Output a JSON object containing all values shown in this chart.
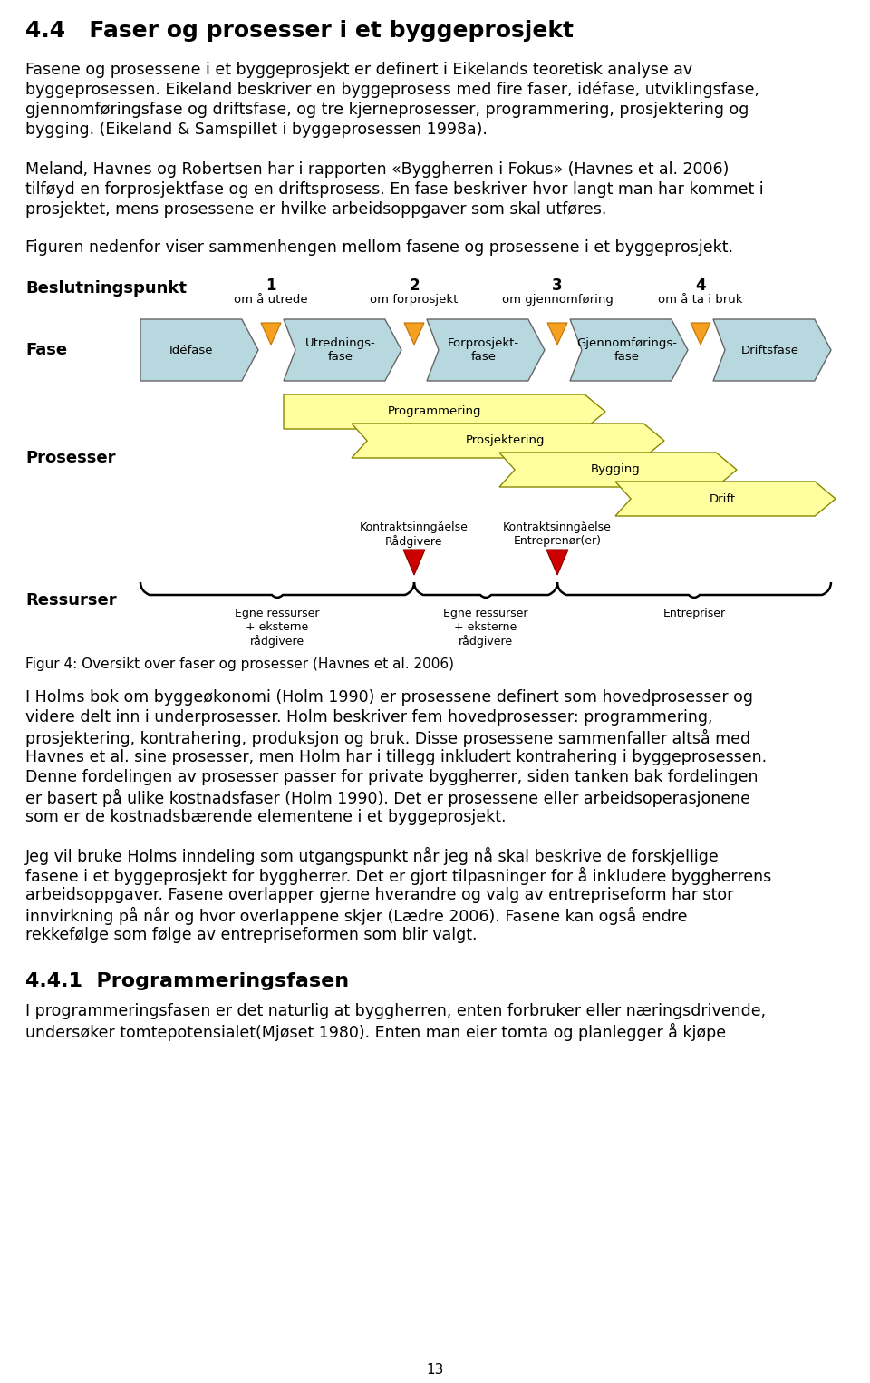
{
  "title_number": "4.4",
  "title_text": "Faser og prosesser i et byggeprosjekt",
  "para1_line1": "Fasene og prosessene i et byggeprosjekt er definert i Eikelands teoretisk analyse av",
  "para1_line2": "byggeprosessen. Eikeland beskriver en byggeprosess med fire faser, idéfase, utviklingsfase,",
  "para1_line3": "gjennomføringsfase og driftsfase, og tre kjerneprosesser, programmering, prosjektering og",
  "para1_line4": "bygging. (Eikeland & Samspillet i byggeprosessen 1998a).",
  "para2_line1": "Meland, Havnes og Robertsen har i rapporten «Byggherren i Fokus» (Havnes et al. 2006)",
  "para2_line2": "tilføyd en forprosjektfase og en driftsprosess. En fase beskriver hvor langt man har kommet i",
  "para2_line3": "prosjektet, mens prosessene er hvilke arbeidsoppgaver som skal utføres.",
  "para3": "Figuren nedenfor viser sammenhengen mellom fasene og prosessene i et byggeprosjekt.",
  "beslutningspunkt_label": "Beslutningspunkt",
  "bp_numbers": [
    "1",
    "2",
    "3",
    "4"
  ],
  "bp_labels": [
    "om å utrede",
    "om forprosjekt",
    "om gjennomføring",
    "om å ta i bruk"
  ],
  "fase_label": "Fase",
  "fase_boxes": [
    "Idéfase",
    "Utrednings-\nfase",
    "Forprosjekt-\nfase",
    "Gjennomførings-\nfase",
    "Driftsfase"
  ],
  "prosesser_label": "Prosesser",
  "prosesser_arrows": [
    "Programmering",
    "Prosjektering",
    "Bygging",
    "Drift"
  ],
  "ressurser_label": "Ressurser",
  "kontrakt1_label": "Kontraktsinngåelse\nRådgivere",
  "kontrakt2_label": "Kontraktsinngåelse\nEntreprenør(er)",
  "brace1_label": "Egne ressurser\n+ eksterne\nrådgivere",
  "brace2_label": "Egne ressurser\n+ eksterne\nrådgivere",
  "brace3_label": "Entrepriser",
  "fig_caption": "Figur 4: Oversikt over faser og prosesser (Havnes et al. 2006)",
  "para4_lines": [
    "I Holms bok om byggeøkonomi (Holm 1990) er prosessene definert som hovedprosesser og",
    "videre delt inn i underprosesser. Holm beskriver fem hovedprosesser: programmering,",
    "prosjektering, kontrahering, produksjon og bruk. Disse prosessene sammenfaller altså med",
    "Havnes et al. sine prosesser, men Holm har i tillegg inkludert kontrahering i byggeprosessen.",
    "Denne fordelingen av prosesser passer for private byggherrer, siden tanken bak fordelingen",
    "er basert på ulike kostnadsfaser (Holm 1990). Det er prosessene eller arbeidsoperasjonene",
    "som er de kostnadsbærende elementene i et byggeprosjekt."
  ],
  "para5_lines": [
    "Jeg vil bruke Holms inndeling som utgangspunkt når jeg nå skal beskrive de forskjellige",
    "fasene i et byggeprosjekt for byggherrer. Det er gjort tilpasninger for å inkludere byggherrens",
    "arbeidsoppgaver. Fasene overlapper gjerne hverandre og valg av entrepriseform har stor",
    "innvirkning på når og hvor overlappene skjer (Lædre 2006). Fasene kan også endre",
    "rekkefølge som følge av entrepriseformen som blir valgt."
  ],
  "section_title2": "4.4.1  Programmeringsfasen",
  "para6_lines": [
    "I programmeringsfasen er det naturlig at byggherren, enten forbruker eller næringsdrivende,",
    "undersøker tomtepotensialet(Mjøset 1980). Enten man eier tomta og planlegger å kjøpe"
  ],
  "page_num": "13",
  "phase_color": "#b8d8e0",
  "process_color": "#ffffa0",
  "orange_color": "#f5a020",
  "red_color": "#cc0000",
  "bg_color": "#ffffff"
}
